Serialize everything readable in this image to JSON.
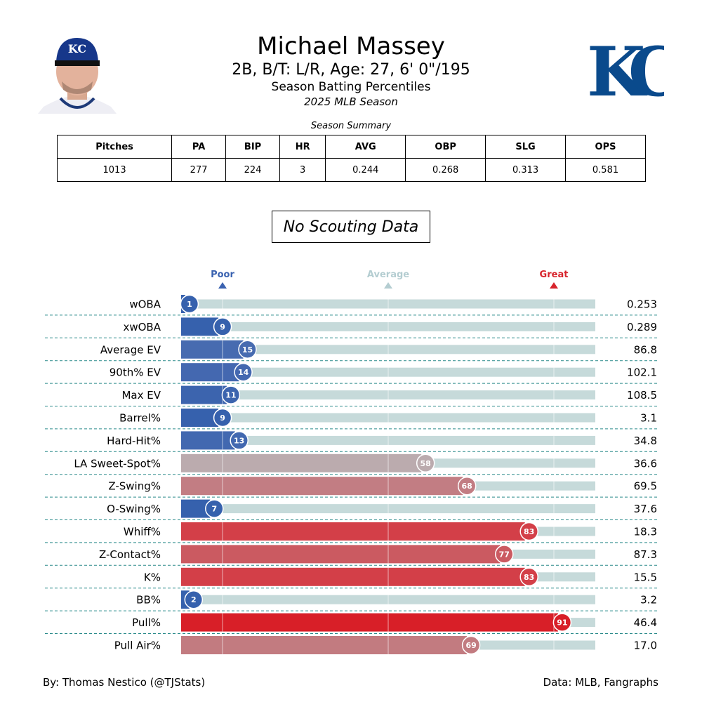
{
  "header": {
    "name": "Michael Massey",
    "bio": "2B, B/T: L/R, Age: 27, 6' 0\"/195",
    "subtitle": "Season Batting Percentiles",
    "season": "2025 MLB Season",
    "logo_text": "KC",
    "cap_text": "KC"
  },
  "summary": {
    "caption": "Season Summary",
    "headers": [
      "Pitches",
      "PA",
      "BIP",
      "HR",
      "AVG",
      "OBP",
      "SLG",
      "OPS"
    ],
    "values": [
      "1013",
      "277",
      "224",
      "3",
      "0.244",
      "0.268",
      "0.313",
      "0.581"
    ]
  },
  "scouting": "No Scouting Data",
  "colors": {
    "poor": "#3a62b0",
    "average": "#b4cdd1",
    "great": "#d7242c",
    "track": "#c6dada",
    "divider": "#2a8a8a"
  },
  "chart_data": {
    "type": "bar",
    "orientation": "horizontal",
    "xlim": [
      0,
      100
    ],
    "markers": [
      {
        "label": "Poor",
        "value": 10
      },
      {
        "label": "Average",
        "value": 50
      },
      {
        "label": "Great",
        "value": 90
      }
    ],
    "rows": [
      {
        "stat": "wOBA",
        "percentile": 1,
        "value": "0.253",
        "color": "#3661ad"
      },
      {
        "stat": "xwOBA",
        "percentile": 9,
        "value": "0.289",
        "color": "#3661ad"
      },
      {
        "stat": "Average EV",
        "percentile": 15,
        "value": "86.8",
        "color": "#476bb0"
      },
      {
        "stat": "90th% EV",
        "percentile": 14,
        "value": "102.1",
        "color": "#4468b0"
      },
      {
        "stat": "Max EV",
        "percentile": 11,
        "value": "108.5",
        "color": "#3c64ae"
      },
      {
        "stat": "Barrel%",
        "percentile": 9,
        "value": "3.1",
        "color": "#3661ad"
      },
      {
        "stat": "Hard-Hit%",
        "percentile": 13,
        "value": "34.8",
        "color": "#4268b0"
      },
      {
        "stat": "LA Sweet-Spot%",
        "percentile": 58,
        "value": "36.6",
        "color": "#bbabae"
      },
      {
        "stat": "Z-Swing%",
        "percentile": 68,
        "value": "69.5",
        "color": "#c27d83"
      },
      {
        "stat": "O-Swing%",
        "percentile": 7,
        "value": "37.6",
        "color": "#3661ad"
      },
      {
        "stat": "Whiff%",
        "percentile": 83,
        "value": "18.3",
        "color": "#d33f48"
      },
      {
        "stat": "Z-Contact%",
        "percentile": 77,
        "value": "87.3",
        "color": "#cb5a61"
      },
      {
        "stat": "K%",
        "percentile": 83,
        "value": "15.5",
        "color": "#d33f48"
      },
      {
        "stat": "BB%",
        "percentile": 2,
        "value": "3.2",
        "color": "#3661ad"
      },
      {
        "stat": "Pull%",
        "percentile": 91,
        "value": "46.4",
        "color": "#d81f28"
      },
      {
        "stat": "Pull Air%",
        "percentile": 69,
        "value": "17.0",
        "color": "#c27b80"
      }
    ]
  },
  "footer": {
    "left": "By: Thomas Nestico (@TJStats)",
    "right": "Data: MLB, Fangraphs"
  }
}
